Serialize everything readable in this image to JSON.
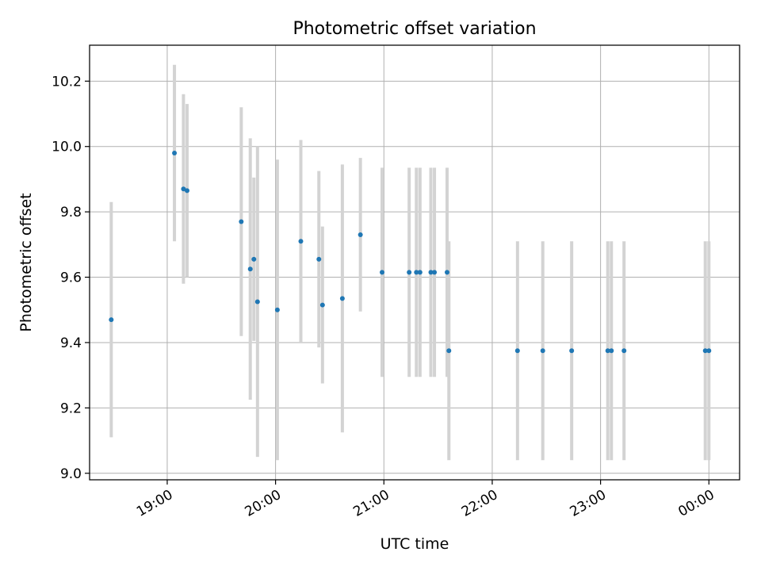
{
  "chart_data": {
    "type": "scatter",
    "title": "Photometric offset variation",
    "xlabel": "UTC time",
    "ylabel": "Photometric offset",
    "x_axis": {
      "kind": "time",
      "range": [
        "18:17",
        "00:17"
      ],
      "ticks": [
        "19:00",
        "20:00",
        "21:00",
        "22:00",
        "23:00",
        "00:00"
      ]
    },
    "ylim": [
      8.98,
      10.31
    ],
    "yticks": [
      "9.0",
      "9.2",
      "9.4",
      "9.6",
      "9.8",
      "10.0",
      "10.2"
    ],
    "grid": true,
    "colors": {
      "point": "#1f77b4",
      "errorbar": "#d3d3d3",
      "grid": "#b0b0b0"
    },
    "points": [
      {
        "time": "18:29",
        "y": 9.47,
        "yerr": 0.36
      },
      {
        "time": "19:04",
        "y": 9.98,
        "yerr": 0.27
      },
      {
        "time": "19:09",
        "y": 9.87,
        "yerr": 0.29
      },
      {
        "time": "19:11",
        "y": 9.865,
        "yerr": 0.265
      },
      {
        "time": "19:41",
        "y": 9.77,
        "yerr": 0.35
      },
      {
        "time": "19:46",
        "y": 9.625,
        "yerr": 0.4
      },
      {
        "time": "19:48",
        "y": 9.655,
        "yerr": 0.25
      },
      {
        "time": "19:50",
        "y": 9.525,
        "yerr": 0.475
      },
      {
        "time": "20:01",
        "y": 9.5,
        "yerr": 0.46
      },
      {
        "time": "20:14",
        "y": 9.71,
        "yerr": 0.31
      },
      {
        "time": "20:24",
        "y": 9.655,
        "yerr": 0.27
      },
      {
        "time": "20:26",
        "y": 9.515,
        "yerr": 0.24
      },
      {
        "time": "20:37",
        "y": 9.535,
        "yerr": 0.41
      },
      {
        "time": "20:47",
        "y": 9.73,
        "yerr": 0.235
      },
      {
        "time": "20:59",
        "y": 9.615,
        "yerr": 0.32
      },
      {
        "time": "21:14",
        "y": 9.615,
        "yerr": 0.32
      },
      {
        "time": "21:18",
        "y": 9.615,
        "yerr": 0.32
      },
      {
        "time": "21:20",
        "y": 9.615,
        "yerr": 0.32
      },
      {
        "time": "21:26",
        "y": 9.615,
        "yerr": 0.32
      },
      {
        "time": "21:28",
        "y": 9.615,
        "yerr": 0.32
      },
      {
        "time": "21:35",
        "y": 9.615,
        "yerr": 0.32
      },
      {
        "time": "21:36",
        "y": 9.375,
        "yerr": 0.335
      },
      {
        "time": "22:14",
        "y": 9.375,
        "yerr": 0.335
      },
      {
        "time": "22:28",
        "y": 9.375,
        "yerr": 0.335
      },
      {
        "time": "22:44",
        "y": 9.375,
        "yerr": 0.335
      },
      {
        "time": "23:04",
        "y": 9.375,
        "yerr": 0.335
      },
      {
        "time": "23:06",
        "y": 9.375,
        "yerr": 0.335
      },
      {
        "time": "23:13",
        "y": 9.375,
        "yerr": 0.335
      },
      {
        "time": "23:58",
        "y": 9.375,
        "yerr": 0.335
      },
      {
        "time": "00:00",
        "y": 9.375,
        "yerr": 0.335
      }
    ]
  }
}
